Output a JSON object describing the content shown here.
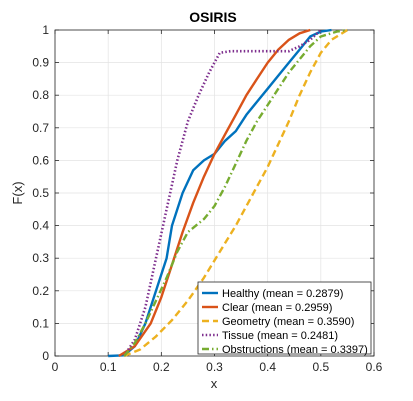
{
  "chart_data": {
    "type": "line",
    "title": "OSIRIS",
    "xlabel": "x",
    "ylabel": "F(x)",
    "xlim": [
      0,
      0.6
    ],
    "ylim": [
      0,
      1
    ],
    "xticks": [
      "0",
      "0.1",
      "0.2",
      "0.3",
      "0.4",
      "0.5",
      "0.6"
    ],
    "yticks": [
      "0",
      "0.1",
      "0.2",
      "0.3",
      "0.4",
      "0.5",
      "0.6",
      "0.7",
      "0.8",
      "0.9",
      "1"
    ],
    "grid": true,
    "legend_position": "bottom-right",
    "series": [
      {
        "name": "Healthy (mean = 0.2879)",
        "color": "#0072BD",
        "style": "solid",
        "points": [
          [
            0.1,
            0
          ],
          [
            0.13,
            0.002
          ],
          [
            0.15,
            0.03
          ],
          [
            0.17,
            0.1
          ],
          [
            0.19,
            0.2
          ],
          [
            0.21,
            0.3
          ],
          [
            0.22,
            0.4
          ],
          [
            0.24,
            0.5
          ],
          [
            0.26,
            0.57
          ],
          [
            0.28,
            0.6
          ],
          [
            0.3,
            0.62
          ],
          [
            0.32,
            0.66
          ],
          [
            0.34,
            0.69
          ],
          [
            0.36,
            0.74
          ],
          [
            0.38,
            0.78
          ],
          [
            0.4,
            0.82
          ],
          [
            0.42,
            0.86
          ],
          [
            0.44,
            0.9
          ],
          [
            0.46,
            0.94
          ],
          [
            0.48,
            0.98
          ],
          [
            0.5,
            0.995
          ],
          [
            0.52,
            1.0
          ]
        ]
      },
      {
        "name": "Clear (mean = 0.2959)",
        "color": "#D95319",
        "style": "solid",
        "points": [
          [
            0.12,
            0
          ],
          [
            0.15,
            0.03
          ],
          [
            0.18,
            0.1
          ],
          [
            0.2,
            0.18
          ],
          [
            0.22,
            0.28
          ],
          [
            0.24,
            0.38
          ],
          [
            0.26,
            0.47
          ],
          [
            0.28,
            0.55
          ],
          [
            0.3,
            0.62
          ],
          [
            0.32,
            0.68
          ],
          [
            0.34,
            0.74
          ],
          [
            0.36,
            0.8
          ],
          [
            0.38,
            0.85
          ],
          [
            0.4,
            0.9
          ],
          [
            0.42,
            0.94
          ],
          [
            0.44,
            0.97
          ],
          [
            0.46,
            0.99
          ],
          [
            0.48,
            1.0
          ]
        ]
      },
      {
        "name": "Geometry (mean = 0.3590)",
        "color": "#EDB120",
        "style": "dashed",
        "points": [
          [
            0.13,
            0
          ],
          [
            0.16,
            0.02
          ],
          [
            0.19,
            0.06
          ],
          [
            0.22,
            0.11
          ],
          [
            0.25,
            0.17
          ],
          [
            0.28,
            0.24
          ],
          [
            0.31,
            0.32
          ],
          [
            0.34,
            0.4
          ],
          [
            0.37,
            0.49
          ],
          [
            0.4,
            0.58
          ],
          [
            0.42,
            0.65
          ],
          [
            0.44,
            0.72
          ],
          [
            0.46,
            0.8
          ],
          [
            0.48,
            0.87
          ],
          [
            0.5,
            0.93
          ],
          [
            0.52,
            0.97
          ],
          [
            0.55,
            1.0
          ]
        ]
      },
      {
        "name": "Tissue (mean = 0.2481)",
        "color": "#7E2F8E",
        "style": "dotted",
        "points": [
          [
            0.13,
            0
          ],
          [
            0.15,
            0.05
          ],
          [
            0.17,
            0.15
          ],
          [
            0.19,
            0.3
          ],
          [
            0.21,
            0.45
          ],
          [
            0.23,
            0.6
          ],
          [
            0.25,
            0.72
          ],
          [
            0.27,
            0.8
          ],
          [
            0.29,
            0.87
          ],
          [
            0.31,
            0.93
          ],
          [
            0.33,
            0.935
          ],
          [
            0.4,
            0.935
          ],
          [
            0.44,
            0.935
          ],
          [
            0.46,
            0.95
          ],
          [
            0.48,
            0.97
          ],
          [
            0.5,
            1.0
          ]
        ]
      },
      {
        "name": "Obstructions (mean = 0.3397)",
        "color": "#77AC30",
        "style": "dashdot",
        "points": [
          [
            0.13,
            0
          ],
          [
            0.15,
            0.04
          ],
          [
            0.17,
            0.1
          ],
          [
            0.19,
            0.17
          ],
          [
            0.21,
            0.24
          ],
          [
            0.23,
            0.32
          ],
          [
            0.25,
            0.38
          ],
          [
            0.28,
            0.42
          ],
          [
            0.3,
            0.46
          ],
          [
            0.32,
            0.52
          ],
          [
            0.34,
            0.59
          ],
          [
            0.36,
            0.66
          ],
          [
            0.38,
            0.72
          ],
          [
            0.4,
            0.77
          ],
          [
            0.42,
            0.82
          ],
          [
            0.44,
            0.87
          ],
          [
            0.46,
            0.91
          ],
          [
            0.48,
            0.95
          ],
          [
            0.5,
            0.98
          ],
          [
            0.53,
            0.995
          ],
          [
            0.55,
            1.0
          ]
        ]
      }
    ]
  }
}
